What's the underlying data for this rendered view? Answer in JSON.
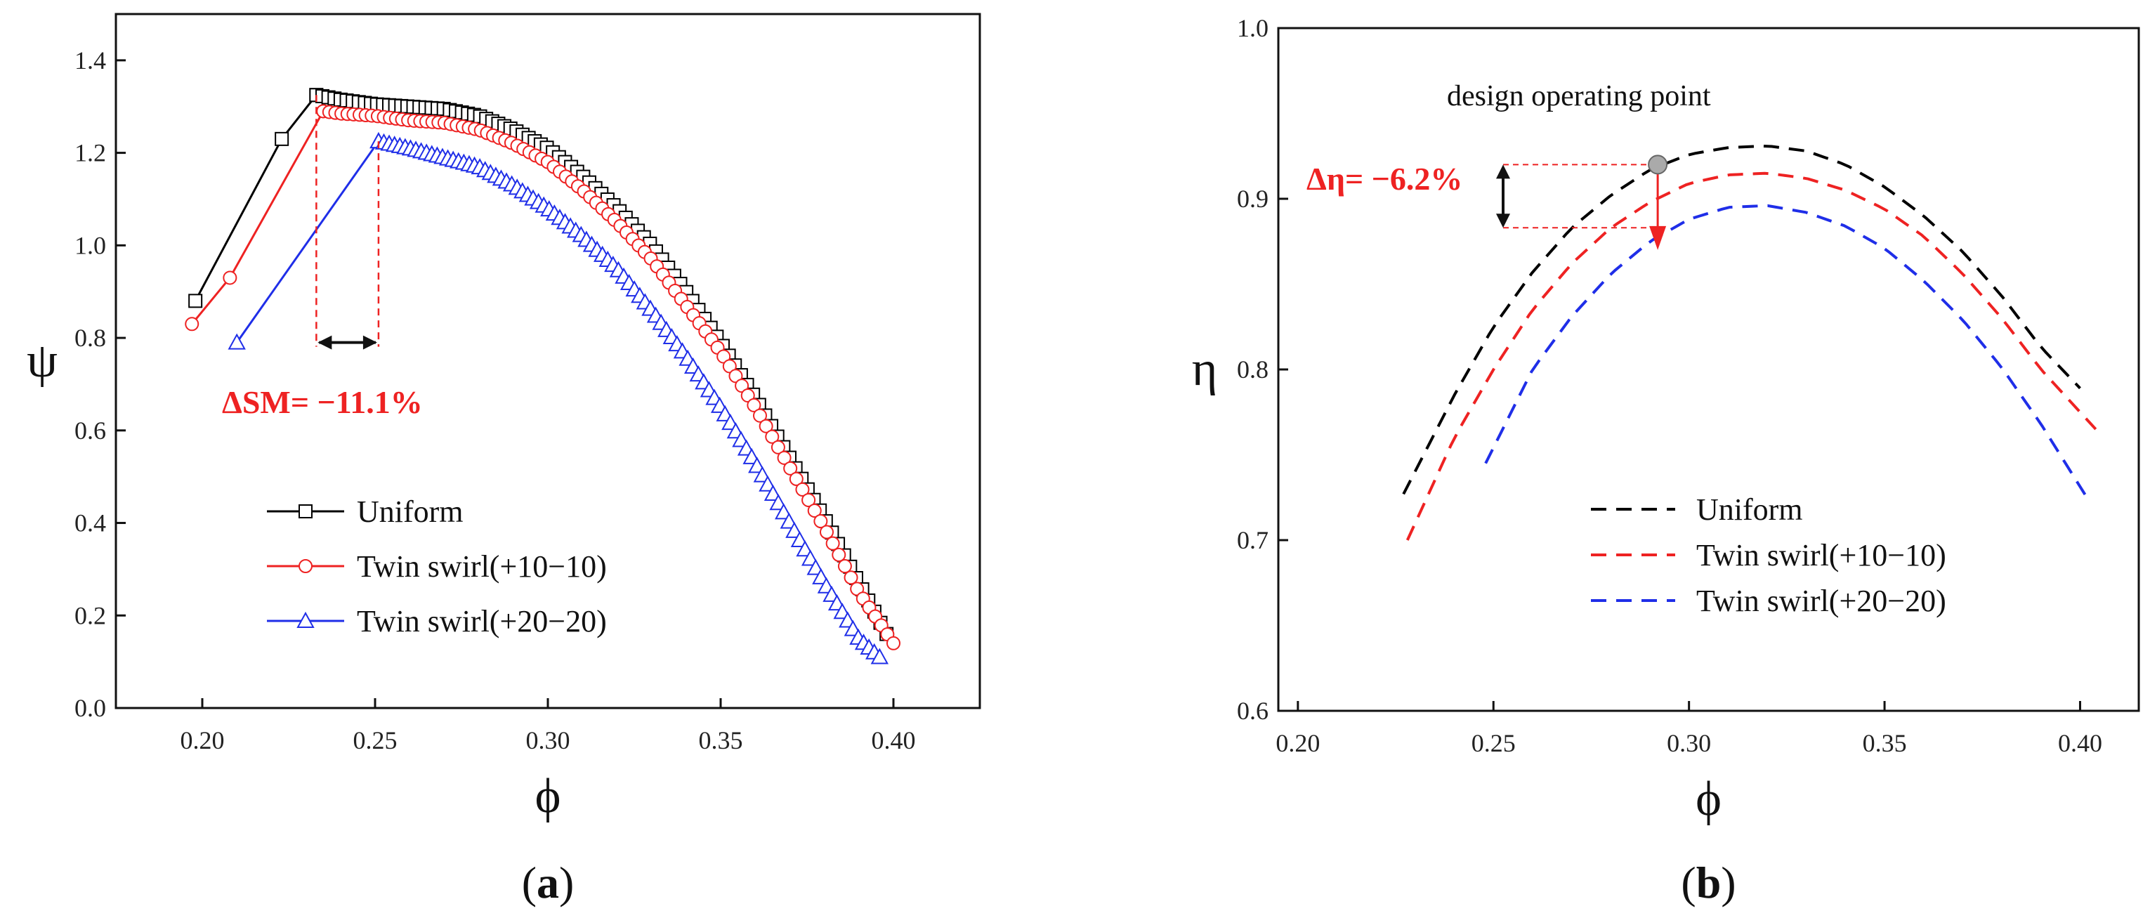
{
  "colors": {
    "uniform": "#000000",
    "twin10": "#ee2222",
    "twin20": "#1f2ee8",
    "annotation": "#ee2222",
    "marker": "#aaaaaa"
  },
  "chart_data": [
    {
      "type": "line",
      "panel_label_open": "(",
      "panel_label_letter": "a",
      "panel_label_close": ")",
      "xlabel": "ϕ",
      "ylabel": "ψ",
      "xlim": [
        0.175,
        0.425
      ],
      "ylim": [
        0.0,
        1.5
      ],
      "xticks": [
        0.2,
        0.25,
        0.3,
        0.35,
        0.4
      ],
      "xtick_labels": [
        "0.20",
        "0.25",
        "0.30",
        "0.35",
        "0.40"
      ],
      "yticks": [
        0.0,
        0.2,
        0.4,
        0.6,
        0.8,
        1.0,
        1.2,
        1.4
      ],
      "ytick_labels": [
        "0.0",
        "0.2",
        "0.4",
        "0.6",
        "0.8",
        "1.0",
        "1.2",
        "1.4"
      ],
      "legend_position": "bottom-center",
      "series": [
        {
          "name": "Uniform",
          "marker": "square",
          "stall_x": [
            0.198,
            0.223,
            0.233
          ],
          "stall_y": [
            0.88,
            1.23,
            1.325
          ],
          "x": [
            0.233,
            0.24,
            0.25,
            0.26,
            0.27,
            0.28,
            0.29,
            0.3,
            0.31,
            0.32,
            0.33,
            0.34,
            0.35,
            0.36,
            0.37,
            0.38,
            0.39,
            0.398
          ],
          "y": [
            1.325,
            1.315,
            1.305,
            1.3,
            1.295,
            1.28,
            1.25,
            1.21,
            1.15,
            1.08,
            1.0,
            0.9,
            0.79,
            0.67,
            0.54,
            0.41,
            0.27,
            0.16
          ]
        },
        {
          "name": "Twin swirl(+10−10)",
          "marker": "circle",
          "stall_x": [
            0.197,
            0.208,
            0.235
          ],
          "stall_y": [
            0.83,
            0.93,
            1.29
          ],
          "x": [
            0.235,
            0.24,
            0.25,
            0.26,
            0.27,
            0.28,
            0.29,
            0.3,
            0.31,
            0.32,
            0.33,
            0.34,
            0.35,
            0.36,
            0.37,
            0.38,
            0.39,
            0.4
          ],
          "y": [
            1.29,
            1.285,
            1.28,
            1.27,
            1.265,
            1.25,
            1.22,
            1.18,
            1.12,
            1.05,
            0.97,
            0.87,
            0.77,
            0.65,
            0.52,
            0.39,
            0.25,
            0.14
          ]
        },
        {
          "name": "Twin swirl(+20−20)",
          "marker": "triangle",
          "stall_x": [
            0.21,
            0.251
          ],
          "stall_y": [
            0.79,
            1.225
          ],
          "x": [
            0.251,
            0.26,
            0.27,
            0.28,
            0.29,
            0.3,
            0.31,
            0.32,
            0.33,
            0.34,
            0.35,
            0.36,
            0.37,
            0.38,
            0.39,
            0.396
          ],
          "y": [
            1.225,
            1.21,
            1.19,
            1.17,
            1.13,
            1.08,
            1.02,
            0.95,
            0.86,
            0.76,
            0.65,
            0.53,
            0.4,
            0.27,
            0.15,
            0.11
          ]
        }
      ],
      "annotation": {
        "text": "ΔSM= −11.1%",
        "x_start": 0.233,
        "x_end": 0.251,
        "arrow_y": 0.79
      }
    },
    {
      "type": "line",
      "panel_label_open": "(",
      "panel_label_letter": "b",
      "panel_label_close": ")",
      "xlabel": "ϕ",
      "ylabel": "η",
      "xlim": [
        0.195,
        0.415
      ],
      "ylim": [
        0.6,
        1.0
      ],
      "xticks": [
        0.2,
        0.25,
        0.3,
        0.35,
        0.4
      ],
      "xtick_labels": [
        "0.20",
        "0.25",
        "0.30",
        "0.35",
        "0.40"
      ],
      "yticks": [
        0.6,
        0.7,
        0.8,
        0.9,
        1.0
      ],
      "ytick_labels": [
        "0.6",
        "0.7",
        "0.8",
        "0.9",
        "1.0"
      ],
      "legend_position": "bottom-center",
      "series": [
        {
          "name": "Uniform",
          "style": "dashed",
          "x": [
            0.227,
            0.24,
            0.25,
            0.26,
            0.27,
            0.28,
            0.29,
            0.3,
            0.31,
            0.32,
            0.33,
            0.34,
            0.35,
            0.36,
            0.37,
            0.38,
            0.39,
            0.4
          ],
          "y": [
            0.727,
            0.785,
            0.825,
            0.857,
            0.883,
            0.902,
            0.917,
            0.926,
            0.93,
            0.931,
            0.928,
            0.92,
            0.907,
            0.89,
            0.869,
            0.843,
            0.813,
            0.789
          ]
        },
        {
          "name": "Twin swirl(+10−10)",
          "style": "dashed",
          "x": [
            0.228,
            0.24,
            0.25,
            0.26,
            0.27,
            0.28,
            0.29,
            0.3,
            0.31,
            0.32,
            0.33,
            0.34,
            0.35,
            0.36,
            0.37,
            0.38,
            0.39,
            0.404
          ],
          "y": [
            0.7,
            0.76,
            0.8,
            0.835,
            0.862,
            0.883,
            0.898,
            0.909,
            0.914,
            0.915,
            0.912,
            0.905,
            0.894,
            0.878,
            0.856,
            0.83,
            0.8,
            0.765
          ]
        },
        {
          "name": "Twin swirl(+20−20)",
          "style": "dashed",
          "x": [
            0.248,
            0.26,
            0.27,
            0.28,
            0.29,
            0.3,
            0.31,
            0.32,
            0.33,
            0.34,
            0.35,
            0.36,
            0.37,
            0.38,
            0.39,
            0.402
          ],
          "y": [
            0.745,
            0.8,
            0.831,
            0.856,
            0.875,
            0.888,
            0.895,
            0.896,
            0.892,
            0.884,
            0.871,
            0.852,
            0.829,
            0.801,
            0.768,
            0.724
          ]
        }
      ],
      "annotation": {
        "title": "design operating point",
        "text": "Δη= −6.2%",
        "point_x": 0.292,
        "point_y": 0.92,
        "drop_y": 0.883
      }
    }
  ]
}
